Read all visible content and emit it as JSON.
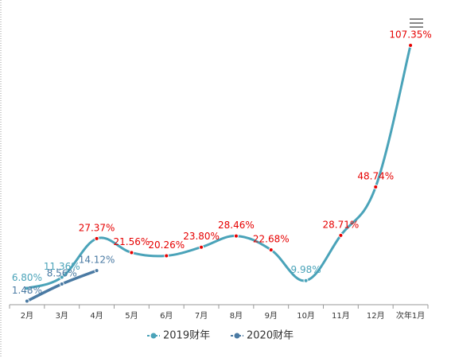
{
  "chart_data": {
    "type": "line",
    "categories": [
      "2月",
      "3月",
      "4月",
      "5月",
      "6月",
      "7月",
      "8月",
      "9月",
      "10月",
      "11月",
      "12月",
      "次年1月"
    ],
    "series": [
      {
        "name": "2019财年",
        "color": "#4aa3b9",
        "values": [
          6.8,
          11.36,
          27.37,
          21.56,
          20.26,
          23.8,
          28.46,
          22.68,
          9.98,
          28.71,
          48.74,
          107.35
        ],
        "value_labels": [
          "6.80%",
          "11.36%",
          "27.37%",
          "21.56%",
          "20.26%",
          "23.80%",
          "28.46%",
          "22.68%",
          "9.98%",
          "28.71%",
          "48.74%",
          "107.35%"
        ],
        "label_colors": [
          "#4aa3b9",
          "#4aa3b9",
          "#e60000",
          "#e60000",
          "#e60000",
          "#e60000",
          "#e60000",
          "#e60000",
          "#4aa3b9",
          "#e60000",
          "#e60000",
          "#e60000"
        ]
      },
      {
        "name": "2020财年",
        "color": "#4a7aa3",
        "values": [
          1.48,
          8.56,
          14.12,
          null,
          null,
          null,
          null,
          null,
          null,
          null,
          null,
          null
        ],
        "value_labels": [
          "1.48%",
          "8.56%",
          "14.12%",
          null,
          null,
          null,
          null,
          null,
          null,
          null,
          null,
          null
        ],
        "label_colors": [
          "#4a7aa3",
          "#4a7aa3",
          "#4a7aa3",
          null,
          null,
          null,
          null,
          null,
          null,
          null,
          null,
          null
        ]
      }
    ],
    "legend": "bottom",
    "grid": false
  }
}
